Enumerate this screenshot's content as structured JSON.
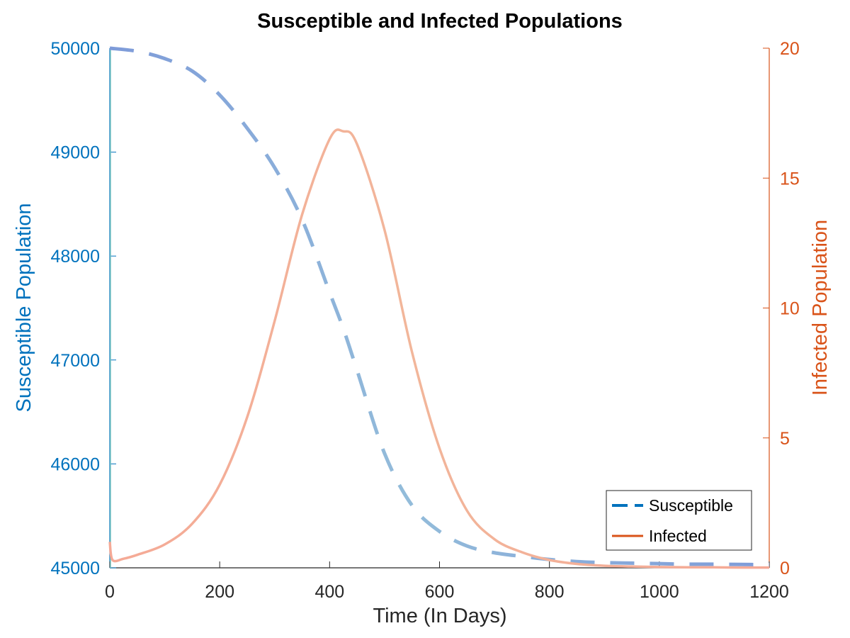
{
  "chart_data": {
    "type": "line",
    "title": "Susceptible and Infected Populations",
    "xlabel": "Time (In Days)",
    "ylabel_left": "Susceptible Population",
    "ylabel_right": "Infected Population",
    "xlim": [
      0,
      1200
    ],
    "ylim_left": [
      45000,
      50000
    ],
    "ylim_right": [
      0,
      20
    ],
    "x_ticks": [
      0,
      200,
      400,
      600,
      800,
      1000,
      1200
    ],
    "y_left_ticks": [
      45000,
      46000,
      47000,
      48000,
      49000,
      50000
    ],
    "y_right_ticks": [
      0,
      5,
      10,
      15,
      20
    ],
    "grid": false,
    "legend_position": "bottom-right",
    "colors": {
      "left_axis": "#0072BD",
      "right_axis": "#D95319",
      "susceptible_line": "#7E9BD9",
      "susceptible_line_mid": "#93BCDA",
      "infected_line": "#F5A996",
      "infected_line_mid": "#F2B69A",
      "legend_susceptible": "#0072BD",
      "legend_infected": "#D95319"
    },
    "series": [
      {
        "name": "Susceptible",
        "axis": "left",
        "style": "dashed",
        "x": [
          0,
          50,
          100,
          150,
          200,
          250,
          300,
          350,
          400,
          425,
          450,
          500,
          550,
          600,
          650,
          700,
          750,
          800,
          850,
          900,
          950,
          1000,
          1050,
          1100,
          1150,
          1200
        ],
        "y": [
          50000,
          49970,
          49900,
          49780,
          49550,
          49230,
          48850,
          48350,
          47650,
          47300,
          46900,
          46100,
          45600,
          45350,
          45210,
          45145,
          45110,
          45080,
          45060,
          45050,
          45045,
          45040,
          45035,
          45035,
          45032,
          45030
        ]
      },
      {
        "name": "Infected",
        "axis": "right",
        "style": "solid",
        "x": [
          0,
          5,
          25,
          50,
          100,
          150,
          200,
          250,
          300,
          350,
          400,
          425,
          450,
          500,
          550,
          600,
          650,
          700,
          750,
          800,
          850,
          900,
          950,
          1000,
          1050,
          1100,
          1150,
          1200
        ],
        "y": [
          1.0,
          0.3,
          0.35,
          0.5,
          0.9,
          1.7,
          3.2,
          5.8,
          9.5,
          13.6,
          16.5,
          16.8,
          16.3,
          13.0,
          8.3,
          4.6,
          2.2,
          1.1,
          0.6,
          0.3,
          0.15,
          0.08,
          0.05,
          0.03,
          0.02,
          0.02,
          0.01,
          0.01
        ]
      }
    ]
  }
}
